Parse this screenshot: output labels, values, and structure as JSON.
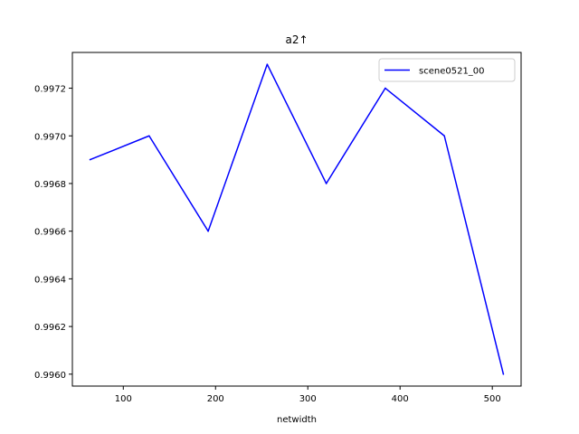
{
  "chart_data": {
    "type": "line",
    "title": "a2↑",
    "xlabel": "netwidth",
    "ylabel": "",
    "xlim": [
      44.8,
      531.2
    ],
    "ylim": [
      0.99595,
      0.99735
    ],
    "xticks": [
      100,
      200,
      300,
      400,
      500
    ],
    "yticks": [
      0.996,
      0.9962,
      0.9964,
      0.9966,
      0.9968,
      0.997,
      0.9972
    ],
    "xtick_labels": [
      "100",
      "200",
      "300",
      "400",
      "500"
    ],
    "ytick_labels": [
      "0.9960",
      "0.9962",
      "0.9964",
      "0.9966",
      "0.9968",
      "0.9970",
      "0.9972"
    ],
    "grid": false,
    "legend_position": "top-right",
    "series": [
      {
        "name": "scene0521_00",
        "color": "#0000ff",
        "x": [
          64,
          128,
          192,
          256,
          320,
          384,
          448,
          512
        ],
        "y": [
          0.9969,
          0.997,
          0.9966,
          0.9973,
          0.9968,
          0.9972,
          0.997,
          0.996
        ]
      }
    ]
  }
}
